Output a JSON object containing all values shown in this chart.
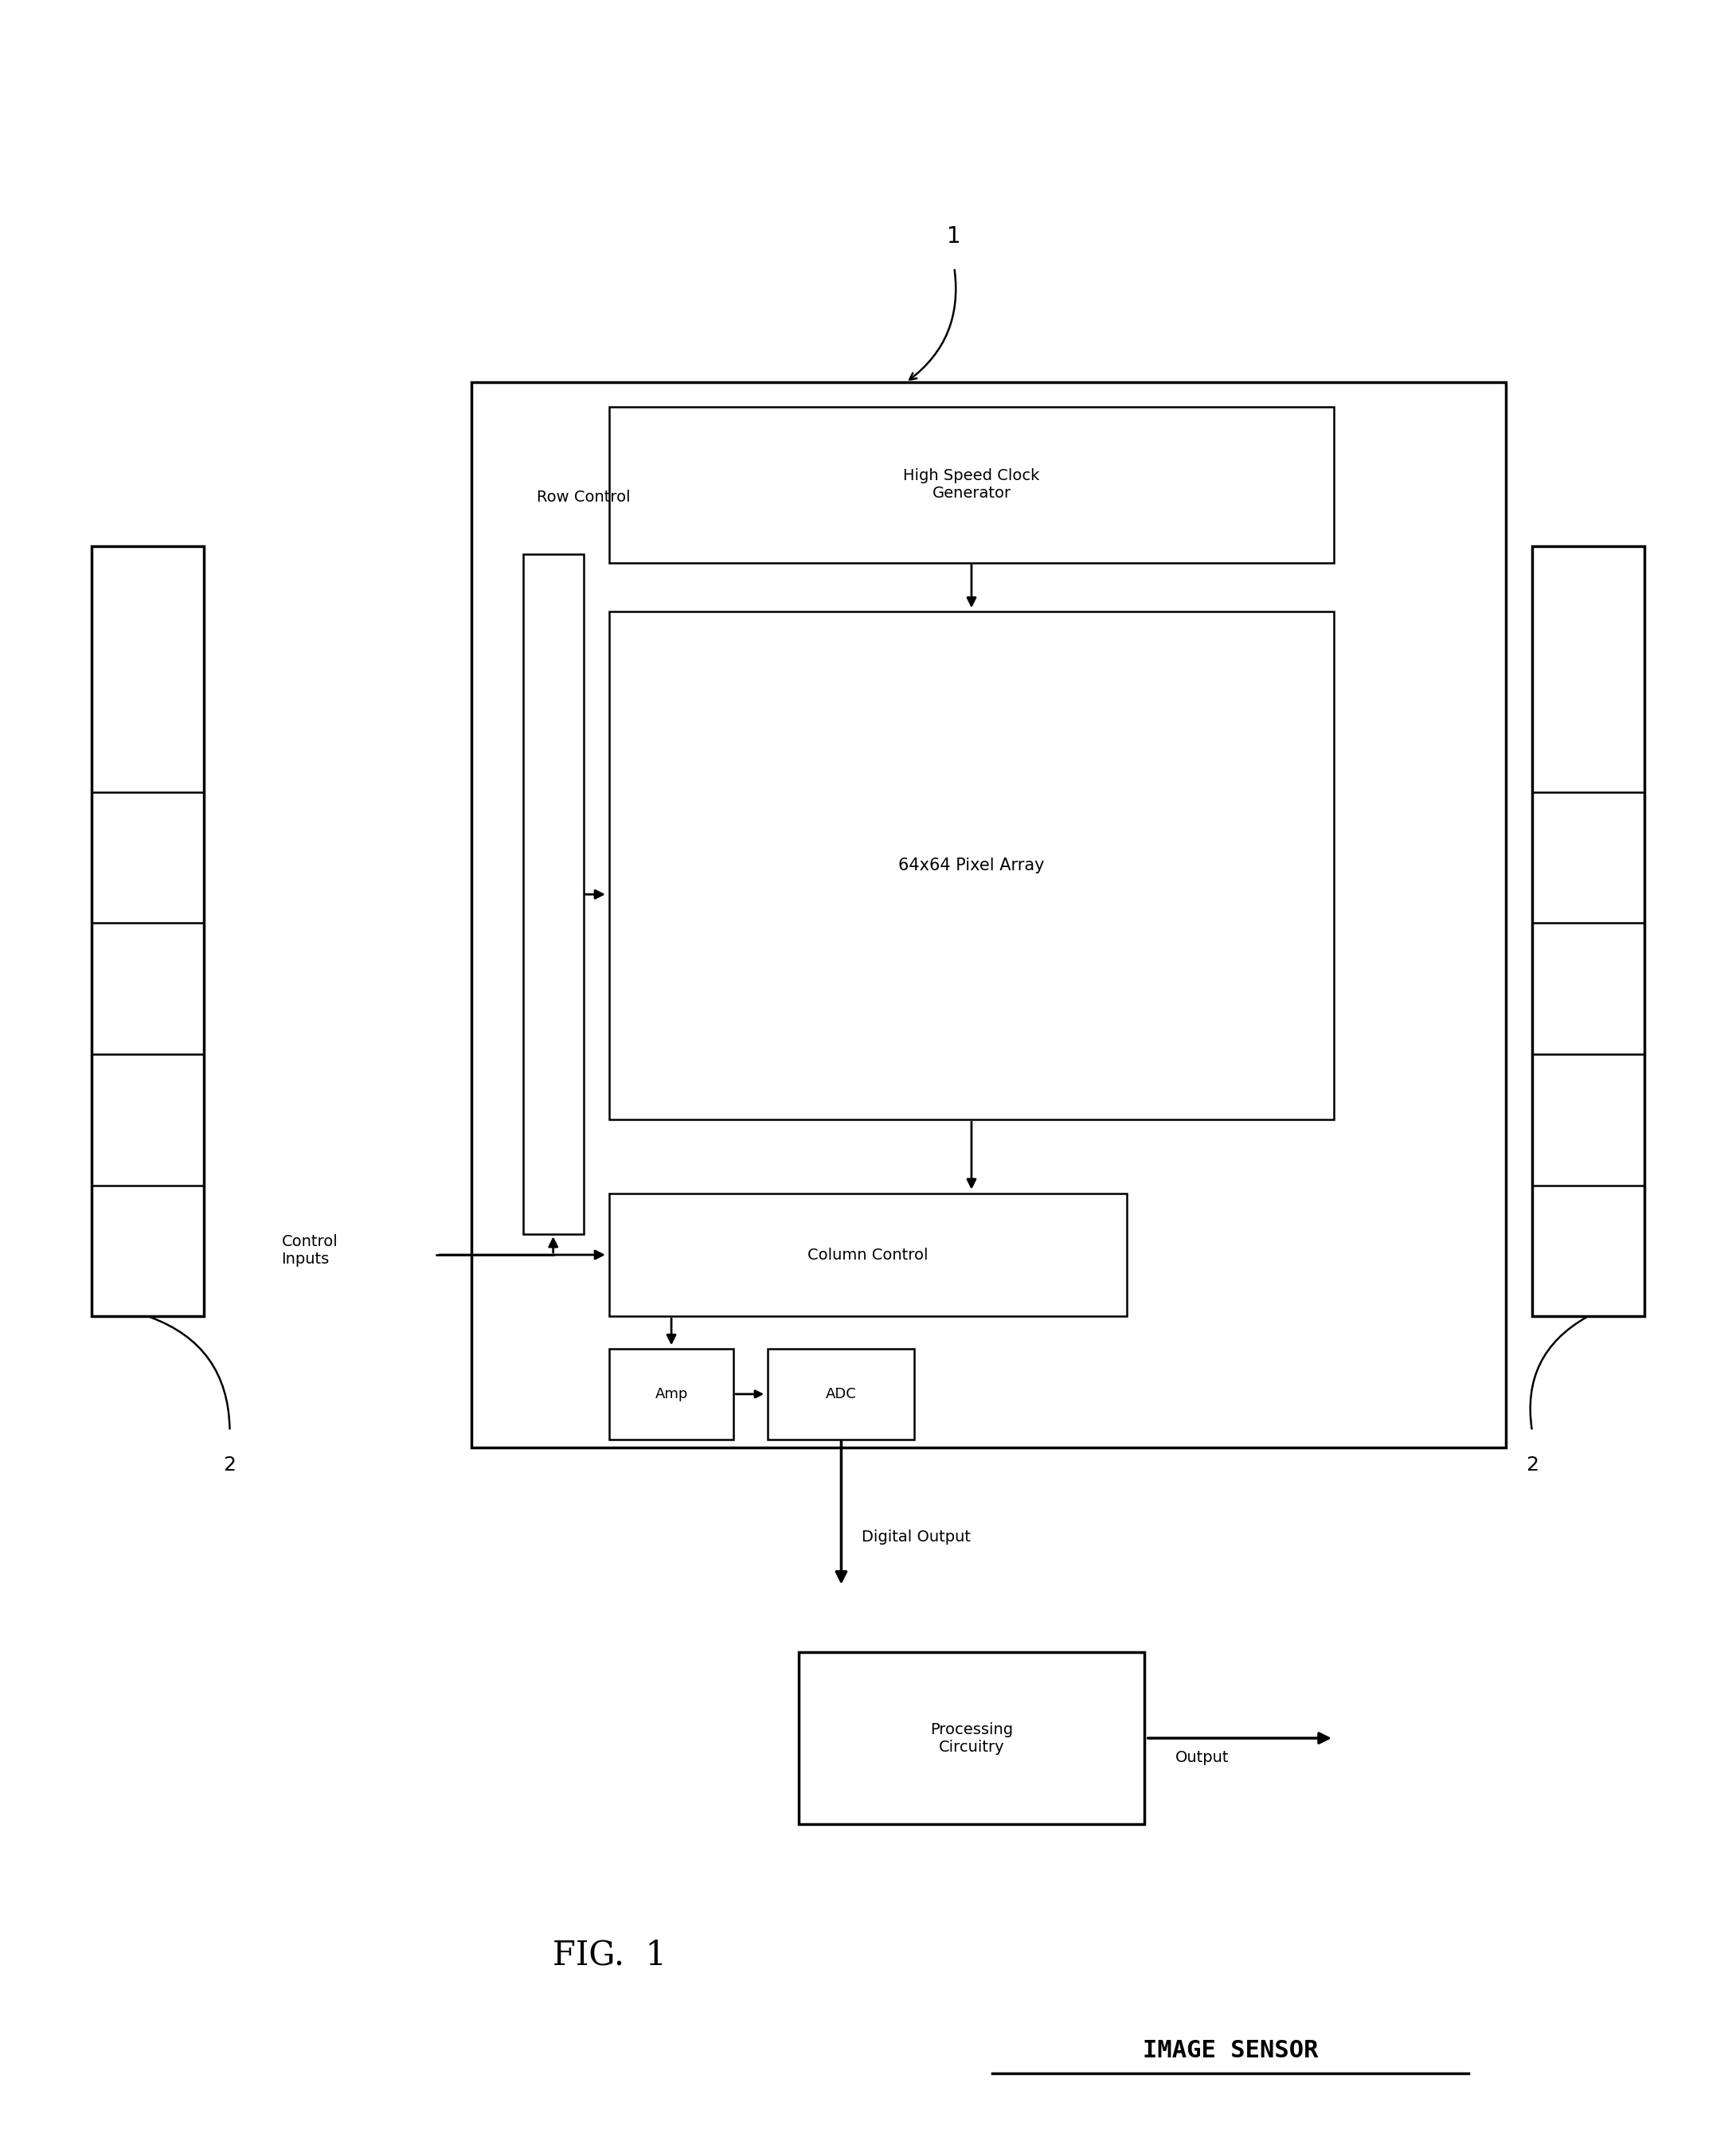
{
  "bg_color": "#ffffff",
  "line_color": "#000000",
  "fig_width": 21.8,
  "fig_height": 26.89,
  "title_text": "FIG.  1",
  "subtitle_text": "IMAGE SENSOR",
  "label_1": "1",
  "label_2_left": "2",
  "label_2_right": "2",
  "row_control_label": "Row Control",
  "control_inputs_label": "Control\nInputs",
  "digital_output_label": "Digital Output",
  "output_label": "Output",
  "high_speed_clock_label": "High Speed Clock\nGenerator",
  "pixel_array_label": "64x64 Pixel Array",
  "column_control_label": "Column Control",
  "amp_label": "Amp",
  "adc_label": "ADC",
  "processing_label": "Processing\nCircuitry"
}
